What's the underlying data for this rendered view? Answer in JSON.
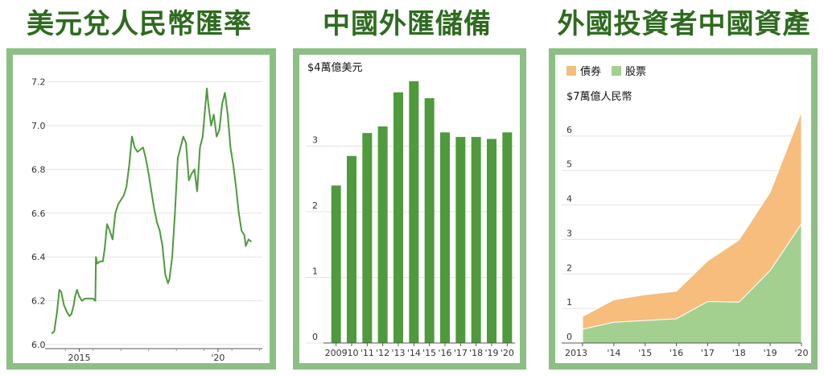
{
  "titles": {
    "left": "美元兌人民幣匯率",
    "middle": "中國外匯儲備",
    "right": "外國投資者中國資產"
  },
  "colors": {
    "title": "#2e6b1f",
    "frame": "#8cbf84",
    "line": "#4e9a3c",
    "bar": "#4e9a3c",
    "bonds": "#f6bd7c",
    "stocks": "#a3d08f"
  },
  "chart_data": [
    {
      "type": "line",
      "title": "美元兌人民幣匯率",
      "x_ticks": [
        "2015",
        "'20"
      ],
      "y_ticks": [
        "6.0",
        "6.2",
        "6.4",
        "6.6",
        "6.8",
        "7.0",
        "7.2"
      ],
      "ylim": [
        6.0,
        7.25
      ],
      "xlim": [
        2014.0,
        2021.25
      ],
      "grid": true,
      "series": [
        {
          "x": [
            2014.0,
            2014.1,
            2014.2,
            2014.28,
            2014.35,
            2014.45,
            2014.55,
            2014.65,
            2014.72,
            2014.8,
            2014.85,
            2014.92,
            2015.0,
            2015.1,
            2015.2,
            2015.3,
            2015.4,
            2015.5,
            2015.58,
            2015.6,
            2015.65,
            2015.75,
            2015.85,
            2015.92,
            2016.0,
            2016.1,
            2016.2,
            2016.3,
            2016.4,
            2016.5,
            2016.6,
            2016.7,
            2016.8,
            2016.9,
            2017.0,
            2017.1,
            2017.2,
            2017.3,
            2017.4,
            2017.5,
            2017.6,
            2017.7,
            2017.8,
            2017.9,
            2018.0,
            2018.1,
            2018.2,
            2018.25,
            2018.35,
            2018.45,
            2018.55,
            2018.65,
            2018.75,
            2018.85,
            2018.95,
            2019.05,
            2019.15,
            2019.25,
            2019.35,
            2019.45,
            2019.55,
            2019.6,
            2019.65,
            2019.75,
            2019.85,
            2019.95,
            2020.05,
            2020.15,
            2020.25,
            2020.35,
            2020.45,
            2020.55,
            2020.65,
            2020.75,
            2020.85,
            2020.95,
            2021.0,
            2021.1,
            2021.2
          ],
          "y": [
            6.05,
            6.06,
            6.15,
            6.25,
            6.24,
            6.18,
            6.15,
            6.13,
            6.14,
            6.18,
            6.22,
            6.25,
            6.22,
            6.2,
            6.21,
            6.21,
            6.21,
            6.21,
            6.2,
            6.4,
            6.37,
            6.38,
            6.38,
            6.44,
            6.55,
            6.52,
            6.48,
            6.6,
            6.64,
            6.66,
            6.68,
            6.72,
            6.82,
            6.95,
            6.9,
            6.88,
            6.89,
            6.9,
            6.85,
            6.78,
            6.7,
            6.62,
            6.56,
            6.52,
            6.45,
            6.32,
            6.28,
            6.3,
            6.4,
            6.6,
            6.85,
            6.9,
            6.95,
            6.92,
            6.75,
            6.78,
            6.8,
            6.7,
            6.9,
            6.95,
            7.1,
            7.17,
            7.1,
            7.0,
            7.05,
            6.95,
            6.98,
            7.1,
            7.15,
            7.05,
            6.9,
            6.82,
            6.72,
            6.6,
            6.52,
            6.5,
            6.45,
            6.48,
            6.47
          ]
        }
      ]
    },
    {
      "type": "bar",
      "title": "中國外匯儲備",
      "unit_label": "$4萬億美元",
      "categories": [
        "2009",
        "'10",
        "'11",
        "'12",
        "'13",
        "'14",
        "'15",
        "'16",
        "'17",
        "'18",
        "'19",
        "'20"
      ],
      "values": [
        2.4,
        2.85,
        3.2,
        3.3,
        3.82,
        3.99,
        3.73,
        3.21,
        3.14,
        3.14,
        3.11,
        3.21
      ],
      "y_ticks": [
        "0",
        "1",
        "2",
        "3"
      ],
      "ylim": [
        0,
        4.0
      ],
      "grid": true
    },
    {
      "type": "area",
      "title": "外國投資者中國資產",
      "unit_label": "$7萬億人民幣",
      "categories": [
        "2013",
        "'14",
        "'15",
        "'16",
        "'17",
        "'18",
        "'19",
        "'20"
      ],
      "y_ticks": [
        "0",
        "1",
        "2",
        "3",
        "4",
        "5",
        "6"
      ],
      "ylim": [
        0,
        7.0
      ],
      "stacked": true,
      "legend_position": "top-left",
      "series": [
        {
          "name": "股票",
          "values": [
            0.4,
            0.6,
            0.65,
            0.7,
            1.2,
            1.18,
            2.1,
            3.45
          ]
        },
        {
          "name": "債券",
          "values": [
            0.37,
            0.65,
            0.75,
            0.8,
            1.18,
            1.8,
            2.27,
            3.25
          ]
        }
      ],
      "legend": [
        {
          "name": "債券",
          "color": "#f6bd7c"
        },
        {
          "name": "股票",
          "color": "#a3d08f"
        }
      ]
    }
  ]
}
